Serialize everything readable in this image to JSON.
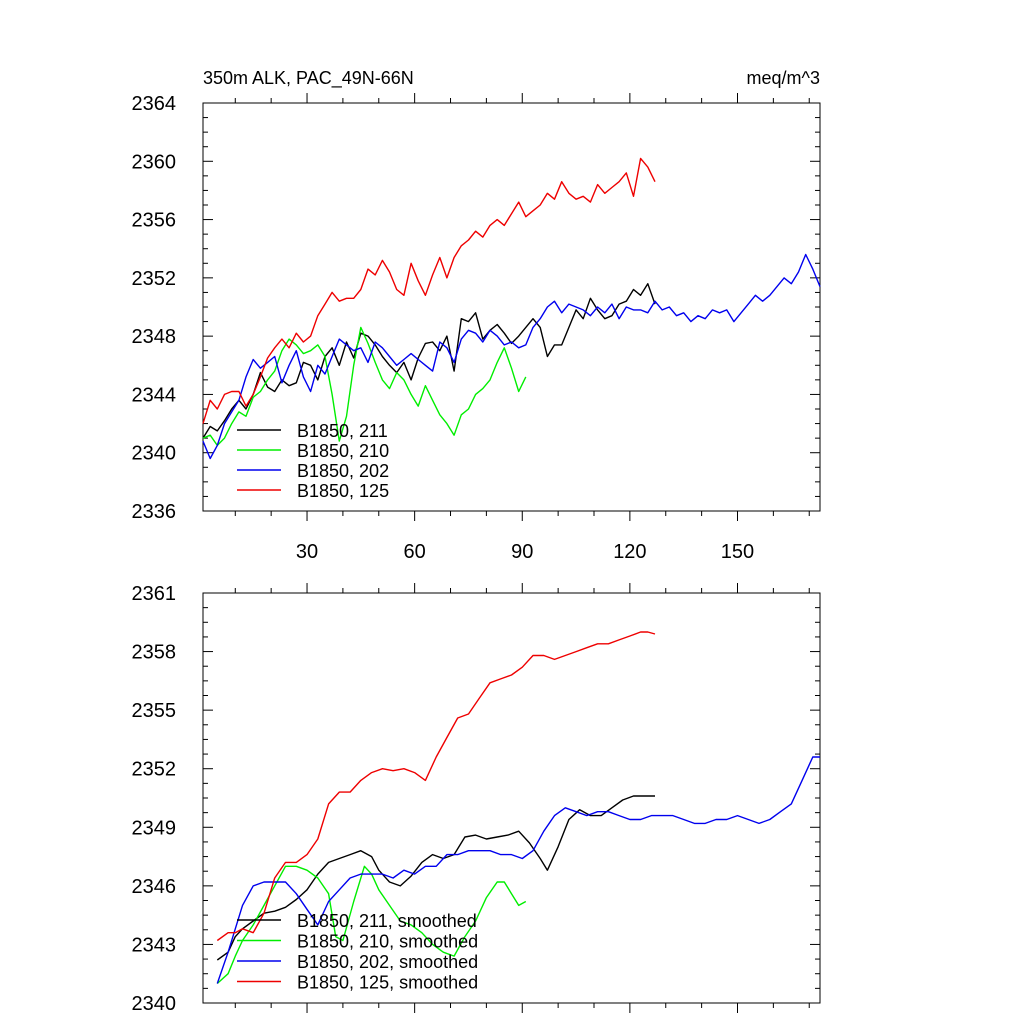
{
  "chart_data": [
    {
      "type": "line",
      "title_left": "350m ALK, PAC_49N-66N",
      "title_right": "meq/m^3",
      "xlim": [
        1,
        173
      ],
      "ylim": [
        2336,
        2364
      ],
      "x_ticks": [
        30,
        60,
        90,
        120,
        150
      ],
      "x_tick_labels": [
        "30",
        "60",
        "90",
        "120",
        "150"
      ],
      "y_ticks": [
        2336,
        2340,
        2344,
        2348,
        2352,
        2356,
        2360,
        2364
      ],
      "y_tick_labels": [
        "2336",
        "2340",
        "2344",
        "2348",
        "2352",
        "2356",
        "2360",
        "2364"
      ],
      "legend_position": "lower-left",
      "series": [
        {
          "name": "B1850, 211",
          "color": "#000000",
          "x": [
            1,
            3,
            5,
            7,
            9,
            11,
            13,
            15,
            17,
            19,
            21,
            23,
            25,
            27,
            29,
            31,
            33,
            35,
            37,
            39,
            41,
            43,
            45,
            47,
            49,
            51,
            53,
            55,
            57,
            59,
            61,
            63,
            65,
            67,
            69,
            71,
            73,
            75,
            77,
            79,
            81,
            83,
            85,
            87,
            89,
            91,
            93,
            95,
            97,
            99,
            101,
            103,
            105,
            107,
            109,
            111,
            113,
            115,
            117,
            119,
            121,
            123,
            125,
            127
          ],
          "y": [
            2341.0,
            2341.8,
            2341.5,
            2342.2,
            2343.0,
            2343.6,
            2343.0,
            2344.0,
            2345.5,
            2344.5,
            2344.2,
            2345.0,
            2344.6,
            2344.8,
            2346.2,
            2346.0,
            2345.0,
            2346.6,
            2347.2,
            2346.0,
            2347.6,
            2346.5,
            2348.2,
            2348.0,
            2347.4,
            2346.6,
            2346.0,
            2345.5,
            2346.2,
            2345.0,
            2346.5,
            2347.5,
            2347.6,
            2347.0,
            2348.0,
            2345.6,
            2349.2,
            2349.0,
            2349.6,
            2347.8,
            2348.4,
            2348.8,
            2348.2,
            2347.5,
            2348.0,
            2348.6,
            2349.2,
            2348.6,
            2346.6,
            2347.4,
            2347.4,
            2348.6,
            2349.8,
            2349.2,
            2350.6,
            2349.8,
            2349.2,
            2349.4,
            2350.2,
            2350.4,
            2351.2,
            2350.8,
            2351.6,
            2350.2
          ]
        },
        {
          "name": "B1850, 210",
          "color": "#00ee00",
          "x": [
            1,
            3,
            5,
            7,
            9,
            11,
            13,
            15,
            17,
            19,
            21,
            23,
            25,
            27,
            29,
            31,
            33,
            35,
            37,
            39,
            41,
            43,
            45,
            47,
            49,
            51,
            53,
            55,
            57,
            59,
            61,
            63,
            65,
            67,
            69,
            71,
            73,
            75,
            77,
            79,
            81,
            83,
            85,
            87,
            89,
            91
          ],
          "y": [
            2341.0,
            2341.2,
            2340.5,
            2341.0,
            2342.0,
            2342.8,
            2342.5,
            2343.8,
            2344.2,
            2345.0,
            2345.6,
            2347.0,
            2347.8,
            2347.4,
            2346.8,
            2347.0,
            2347.4,
            2346.6,
            2344.0,
            2340.8,
            2342.5,
            2346.0,
            2348.6,
            2347.5,
            2346.2,
            2345.0,
            2344.4,
            2345.5,
            2345.0,
            2344.0,
            2343.2,
            2344.6,
            2343.6,
            2342.6,
            2342.0,
            2341.2,
            2342.6,
            2343.0,
            2344.0,
            2344.4,
            2345.0,
            2346.2,
            2347.2,
            2345.8,
            2344.2,
            2345.2
          ]
        },
        {
          "name": "B1850, 202",
          "color": "#0000ee",
          "x": [
            1,
            3,
            5,
            7,
            9,
            11,
            13,
            15,
            17,
            19,
            21,
            23,
            25,
            27,
            29,
            31,
            33,
            35,
            37,
            39,
            41,
            43,
            45,
            47,
            49,
            51,
            53,
            55,
            57,
            59,
            61,
            63,
            65,
            67,
            69,
            71,
            73,
            75,
            77,
            79,
            81,
            83,
            85,
            87,
            89,
            91,
            93,
            95,
            97,
            99,
            101,
            103,
            105,
            107,
            109,
            111,
            113,
            115,
            117,
            119,
            121,
            123,
            125,
            127,
            129,
            131,
            133,
            135,
            137,
            139,
            141,
            143,
            145,
            147,
            149,
            151,
            153,
            155,
            157,
            159,
            161,
            163,
            165,
            167,
            169,
            171,
            173
          ],
          "y": [
            2340.8,
            2339.6,
            2340.5,
            2342.0,
            2342.8,
            2343.6,
            2345.2,
            2346.4,
            2345.8,
            2346.2,
            2346.6,
            2344.8,
            2346.0,
            2347.0,
            2345.2,
            2344.2,
            2346.0,
            2345.4,
            2346.6,
            2347.8,
            2347.4,
            2347.0,
            2347.2,
            2346.2,
            2347.6,
            2347.2,
            2346.6,
            2346.0,
            2346.4,
            2346.8,
            2346.4,
            2346.0,
            2345.6,
            2347.6,
            2347.2,
            2346.2,
            2347.8,
            2348.4,
            2348.2,
            2347.6,
            2348.4,
            2348.0,
            2347.4,
            2347.6,
            2347.2,
            2347.4,
            2348.6,
            2349.2,
            2350.0,
            2350.4,
            2349.6,
            2350.2,
            2350.0,
            2349.8,
            2349.4,
            2350.0,
            2349.6,
            2350.2,
            2349.2,
            2350.0,
            2349.8,
            2349.8,
            2349.6,
            2350.4,
            2349.8,
            2350.0,
            2349.4,
            2349.6,
            2349.0,
            2349.4,
            2349.2,
            2349.8,
            2349.6,
            2349.8,
            2349.0,
            2349.6,
            2350.2,
            2350.8,
            2350.4,
            2350.8,
            2351.4,
            2352.0,
            2351.6,
            2352.4,
            2353.6,
            2352.6,
            2351.4
          ]
        },
        {
          "name": "B1850, 125",
          "color": "#ee0000",
          "x": [
            1,
            3,
            5,
            7,
            9,
            11,
            13,
            15,
            17,
            19,
            21,
            23,
            25,
            27,
            29,
            31,
            33,
            35,
            37,
            39,
            41,
            43,
            45,
            47,
            49,
            51,
            53,
            55,
            57,
            59,
            61,
            63,
            65,
            67,
            69,
            71,
            73,
            75,
            77,
            79,
            81,
            83,
            85,
            87,
            89,
            91,
            93,
            95,
            97,
            99,
            101,
            103,
            105,
            107,
            109,
            111,
            113,
            115,
            117,
            119,
            121,
            123,
            125,
            127
          ],
          "y": [
            2342.0,
            2343.6,
            2343.0,
            2344.0,
            2344.2,
            2344.2,
            2343.2,
            2344.0,
            2345.2,
            2346.5,
            2347.2,
            2347.8,
            2347.2,
            2348.2,
            2347.6,
            2348.0,
            2349.4,
            2350.2,
            2351.0,
            2350.4,
            2350.6,
            2350.6,
            2351.2,
            2352.6,
            2352.2,
            2353.2,
            2352.4,
            2351.2,
            2350.8,
            2353.0,
            2351.8,
            2350.8,
            2352.2,
            2353.4,
            2352.0,
            2353.4,
            2354.2,
            2354.6,
            2355.2,
            2354.8,
            2355.6,
            2356.0,
            2355.6,
            2356.4,
            2357.2,
            2356.2,
            2356.6,
            2357.0,
            2357.8,
            2357.4,
            2358.6,
            2357.8,
            2357.4,
            2357.6,
            2357.2,
            2358.4,
            2357.8,
            2358.2,
            2358.6,
            2359.2,
            2357.6,
            2360.2,
            2359.6,
            2358.6
          ]
        }
      ]
    },
    {
      "type": "line",
      "title_left": "",
      "title_right": "",
      "xlim": [
        1,
        173
      ],
      "ylim": [
        2340,
        2361
      ],
      "x_ticks": [
        30,
        60,
        90,
        120,
        150
      ],
      "x_tick_labels": [],
      "y_ticks": [
        2340,
        2343,
        2346,
        2349,
        2352,
        2355,
        2358,
        2361
      ],
      "y_tick_labels": [
        "2340",
        "2343",
        "2346",
        "2349",
        "2352",
        "2355",
        "2358",
        "2361"
      ],
      "legend_position": "lower-left",
      "series": [
        {
          "name": "B1850, 211, smoothed",
          "color": "#000000",
          "x": [
            5,
            8,
            10,
            12,
            15,
            18,
            21,
            24,
            27,
            30,
            33,
            36,
            39,
            42,
            45,
            48,
            50,
            53,
            56,
            59,
            62,
            65,
            68,
            71,
            74,
            77,
            80,
            83,
            86,
            89,
            92,
            95,
            97,
            100,
            103,
            106,
            109,
            112,
            115,
            118,
            121,
            124,
            127
          ],
          "y": [
            2342.2,
            2342.6,
            2343.4,
            2343.8,
            2344.2,
            2344.6,
            2344.7,
            2344.9,
            2345.3,
            2345.8,
            2346.6,
            2347.2,
            2347.4,
            2347.6,
            2347.8,
            2347.5,
            2346.8,
            2346.2,
            2346.0,
            2346.5,
            2347.2,
            2347.6,
            2347.4,
            2347.6,
            2348.5,
            2348.6,
            2348.4,
            2348.5,
            2348.6,
            2348.8,
            2348.2,
            2347.4,
            2346.8,
            2348.0,
            2349.4,
            2349.9,
            2349.6,
            2349.6,
            2350.0,
            2350.4,
            2350.6,
            2350.6,
            2350.6
          ]
        },
        {
          "name": "B1850, 210, smoothed",
          "color": "#00ee00",
          "x": [
            5,
            8,
            10,
            12,
            15,
            18,
            21,
            24,
            27,
            30,
            33,
            36,
            38,
            40,
            43,
            46,
            48,
            50,
            53,
            56,
            59,
            62,
            65,
            68,
            71,
            74,
            77,
            80,
            83,
            85,
            87,
            89,
            91
          ],
          "y": [
            2341.0,
            2341.5,
            2342.4,
            2343.2,
            2344.0,
            2345.0,
            2346.0,
            2347.0,
            2347.0,
            2346.8,
            2346.4,
            2345.6,
            2343.4,
            2343.2,
            2345.2,
            2347.0,
            2346.6,
            2345.8,
            2345.0,
            2344.2,
            2344.0,
            2343.6,
            2343.0,
            2342.6,
            2342.4,
            2343.4,
            2344.2,
            2345.4,
            2346.2,
            2346.2,
            2345.6,
            2345.0,
            2345.2
          ]
        },
        {
          "name": "B1850, 202, smoothed",
          "color": "#0000ee",
          "x": [
            5,
            8,
            10,
            12,
            15,
            18,
            21,
            24,
            27,
            30,
            33,
            36,
            39,
            42,
            45,
            48,
            51,
            54,
            57,
            60,
            63,
            66,
            69,
            72,
            75,
            78,
            81,
            84,
            87,
            90,
            93,
            96,
            99,
            102,
            105,
            108,
            111,
            114,
            117,
            120,
            123,
            126,
            129,
            132,
            135,
            138,
            141,
            144,
            147,
            150,
            153,
            156,
            159,
            162,
            165,
            168,
            171,
            173
          ],
          "y": [
            2341.0,
            2342.6,
            2343.8,
            2345.0,
            2346.0,
            2346.2,
            2346.2,
            2346.2,
            2345.6,
            2344.8,
            2344.0,
            2345.2,
            2345.8,
            2346.4,
            2346.6,
            2346.6,
            2346.6,
            2346.4,
            2346.8,
            2346.6,
            2347.0,
            2347.0,
            2347.6,
            2347.6,
            2347.8,
            2347.8,
            2347.8,
            2347.6,
            2347.6,
            2347.4,
            2347.8,
            2348.8,
            2349.6,
            2350.0,
            2349.8,
            2349.6,
            2349.8,
            2349.8,
            2349.6,
            2349.4,
            2349.4,
            2349.6,
            2349.6,
            2349.6,
            2349.4,
            2349.2,
            2349.2,
            2349.4,
            2349.4,
            2349.6,
            2349.4,
            2349.2,
            2349.4,
            2349.8,
            2350.2,
            2351.4,
            2352.6,
            2352.6
          ]
        },
        {
          "name": "B1850, 125, smoothed",
          "color": "#ee0000",
          "x": [
            5,
            8,
            10,
            12,
            15,
            18,
            21,
            24,
            27,
            30,
            33,
            36,
            39,
            42,
            45,
            48,
            51,
            54,
            57,
            60,
            63,
            66,
            69,
            72,
            75,
            78,
            81,
            84,
            87,
            90,
            93,
            96,
            99,
            102,
            105,
            108,
            111,
            114,
            117,
            120,
            123,
            125,
            127
          ],
          "y": [
            2343.2,
            2343.6,
            2343.6,
            2343.8,
            2343.6,
            2344.6,
            2346.4,
            2347.2,
            2347.2,
            2347.6,
            2348.4,
            2350.2,
            2350.8,
            2350.8,
            2351.4,
            2351.8,
            2352.0,
            2351.9,
            2352.0,
            2351.8,
            2351.4,
            2352.6,
            2353.6,
            2354.6,
            2354.8,
            2355.6,
            2356.4,
            2356.6,
            2356.8,
            2357.2,
            2357.8,
            2357.8,
            2357.6,
            2357.8,
            2358.0,
            2358.2,
            2358.4,
            2358.4,
            2358.6,
            2358.8,
            2359.0,
            2359.0,
            2358.9
          ]
        }
      ]
    }
  ]
}
